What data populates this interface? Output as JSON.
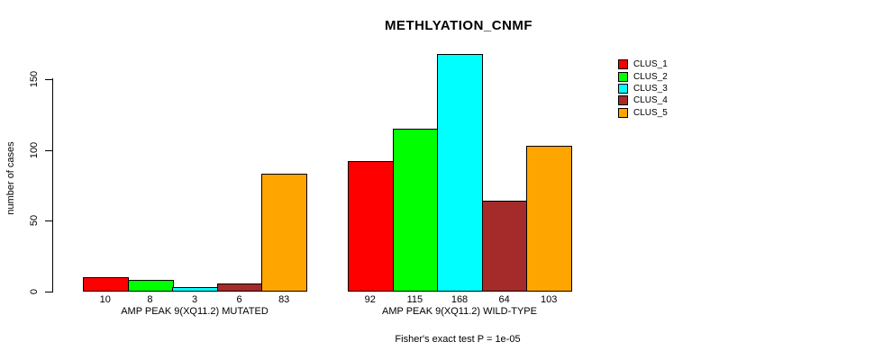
{
  "title": "METHLYATION_CNMF",
  "y_axis": {
    "label": "number of cases",
    "ticks": [
      0,
      50,
      100,
      150
    ]
  },
  "annotation": "Fisher's exact test P = 1e-05",
  "legend": {
    "items": [
      {
        "label": "CLUS_1",
        "color": "#FF0000"
      },
      {
        "label": "CLUS_2",
        "color": "#00FF00"
      },
      {
        "label": "CLUS_3",
        "color": "#00FFFF"
      },
      {
        "label": "CLUS_4",
        "color": "#A52A2A"
      },
      {
        "label": "CLUS_5",
        "color": "#FFA500"
      }
    ]
  },
  "chart_data": {
    "type": "bar",
    "title": "METHLYATION_CNMF",
    "xlabel": "",
    "ylabel": "number of cases",
    "ylim": [
      0,
      168
    ],
    "yticks": [
      0,
      50,
      100,
      150
    ],
    "grid": false,
    "legend_position": "right",
    "series_names": [
      "CLUS_1",
      "CLUS_2",
      "CLUS_3",
      "CLUS_4",
      "CLUS_5"
    ],
    "series_colors": [
      "#FF0000",
      "#00FF00",
      "#00FFFF",
      "#A52A2A",
      "#FFA500"
    ],
    "groups": [
      {
        "label": "AMP PEAK 9(XQ11.2) MUTATED",
        "values": [
          10,
          8,
          3,
          6,
          83
        ]
      },
      {
        "label": "AMP PEAK 9(XQ11.2) WILD-TYPE",
        "values": [
          92,
          115,
          168,
          64,
          103
        ]
      }
    ],
    "annotation": "Fisher's exact test P = 1e-05"
  }
}
